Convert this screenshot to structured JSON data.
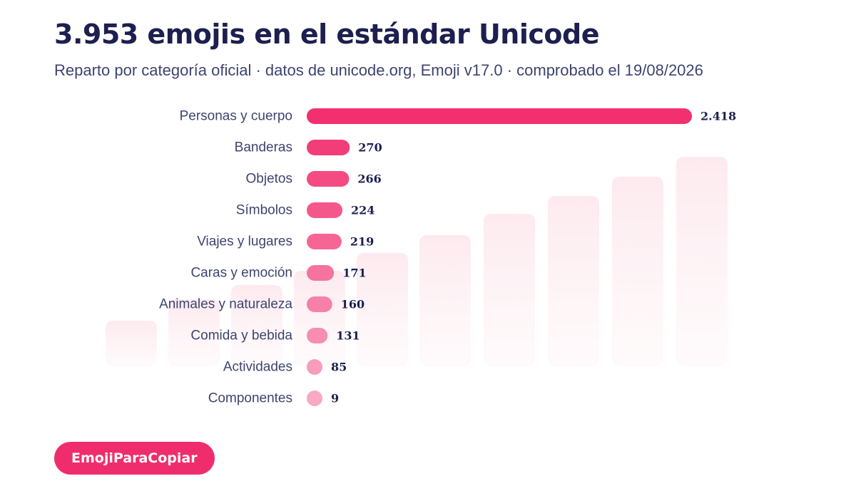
{
  "header": {
    "title": "3.953 emojis en el estándar Unicode",
    "subtitle": "Reparto por categoría oficial · datos de unicode.org, Emoji v17.0 · comprobado el 19/08/2026"
  },
  "brand": {
    "label": "EmojiParaCopiar"
  },
  "colors": {
    "bar_dark": "#f2306f",
    "bar_light": "#f8a9c4",
    "text": "#1d1f4f",
    "label": "#3e4470",
    "brand": "#f02d6c"
  },
  "chart_data": {
    "type": "bar",
    "orientation": "horizontal",
    "categories": [
      "Personas y cuerpo",
      "Banderas",
      "Objetos",
      "Símbolos",
      "Viajes y lugares",
      "Caras y emoción",
      "Animales y naturaleza",
      "Comida y bebida",
      "Actividades",
      "Componentes"
    ],
    "values": [
      2418,
      270,
      266,
      224,
      219,
      171,
      160,
      131,
      85,
      9
    ],
    "value_labels": [
      "2.418",
      "270",
      "266",
      "224",
      "219",
      "171",
      "160",
      "131",
      "85",
      "9"
    ],
    "title": "3.953 emojis en el estándar Unicode",
    "grid": false,
    "legend": "none"
  }
}
